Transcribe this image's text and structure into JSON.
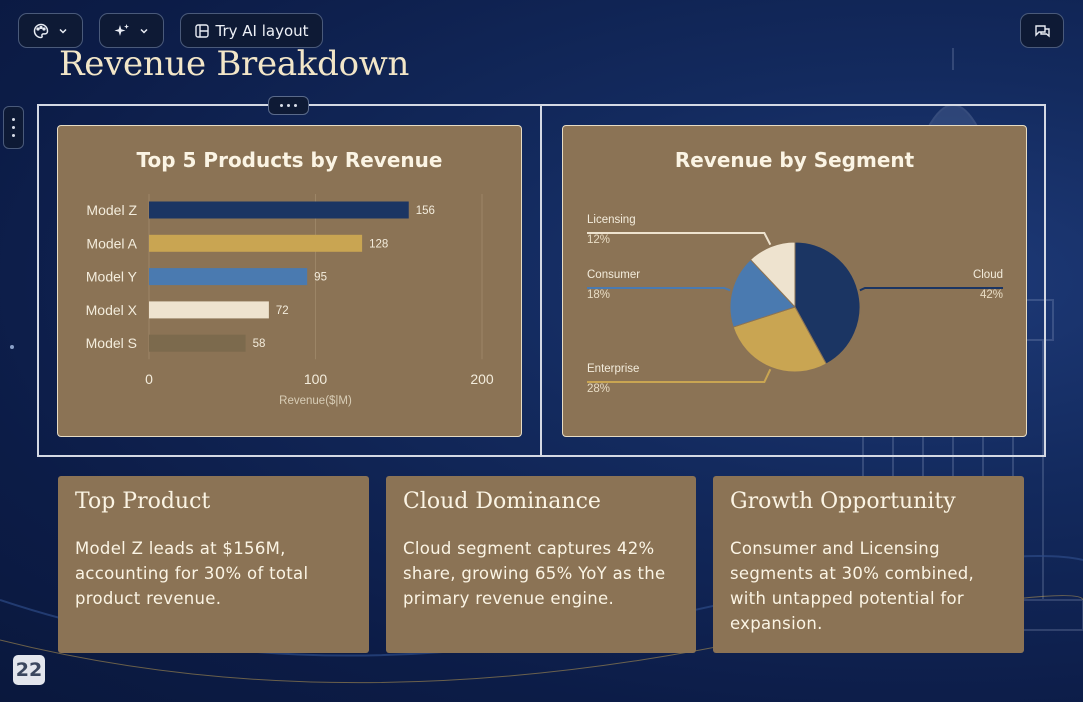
{
  "toolbar": {
    "theme_icon": "palette-icon",
    "ai_icon": "sparkles-icon",
    "try_ai_label": "Try AI layout",
    "comments_icon": "comments-icon"
  },
  "slide": {
    "title": "Revenue Breakdown",
    "page_number": "22",
    "colors": {
      "navy": "#1b3563",
      "gold": "#c9a552",
      "steel": "#4a7ab0",
      "cream": "#eee3cf",
      "olive": "#7c6a4d",
      "card": "#8b7355"
    }
  },
  "cards": [
    {
      "title": "Top Product",
      "body": "Model Z leads at $156M, accounting for 30% of total product revenue."
    },
    {
      "title": "Cloud Dominance",
      "body": "Cloud segment captures 42% share, growing 65% YoY as the primary revenue engine."
    },
    {
      "title": "Growth Opportunity",
      "body": "Consumer and Licensing segments at 30% combined, with untapped potential for expansion."
    }
  ],
  "chart_data": [
    {
      "type": "bar",
      "orientation": "horizontal",
      "title": "Top 5 Products by Revenue",
      "categories": [
        "Model Z",
        "Model A",
        "Model Y",
        "Model X",
        "Model S"
      ],
      "values": [
        156,
        128,
        95,
        72,
        58
      ],
      "colors": [
        "#1b3563",
        "#c9a552",
        "#4a7ab0",
        "#eee3cf",
        "#7c6a4d"
      ],
      "xlabel": "Revenue($|M)",
      "xlim": [
        0,
        200
      ],
      "xticks": [
        0,
        100,
        200
      ],
      "grid": true
    },
    {
      "type": "pie",
      "title": "Revenue by Segment",
      "slices": [
        {
          "label": "Cloud",
          "pct_label": "42%",
          "value": 42,
          "color": "#1b3563"
        },
        {
          "label": "Enterprise",
          "pct_label": "28%",
          "value": 28,
          "color": "#c9a552"
        },
        {
          "label": "Consumer",
          "pct_label": "18%",
          "value": 18,
          "color": "#4a7ab0"
        },
        {
          "label": "Licensing",
          "pct_label": "12%",
          "value": 12,
          "color": "#eee3cf"
        }
      ]
    }
  ]
}
